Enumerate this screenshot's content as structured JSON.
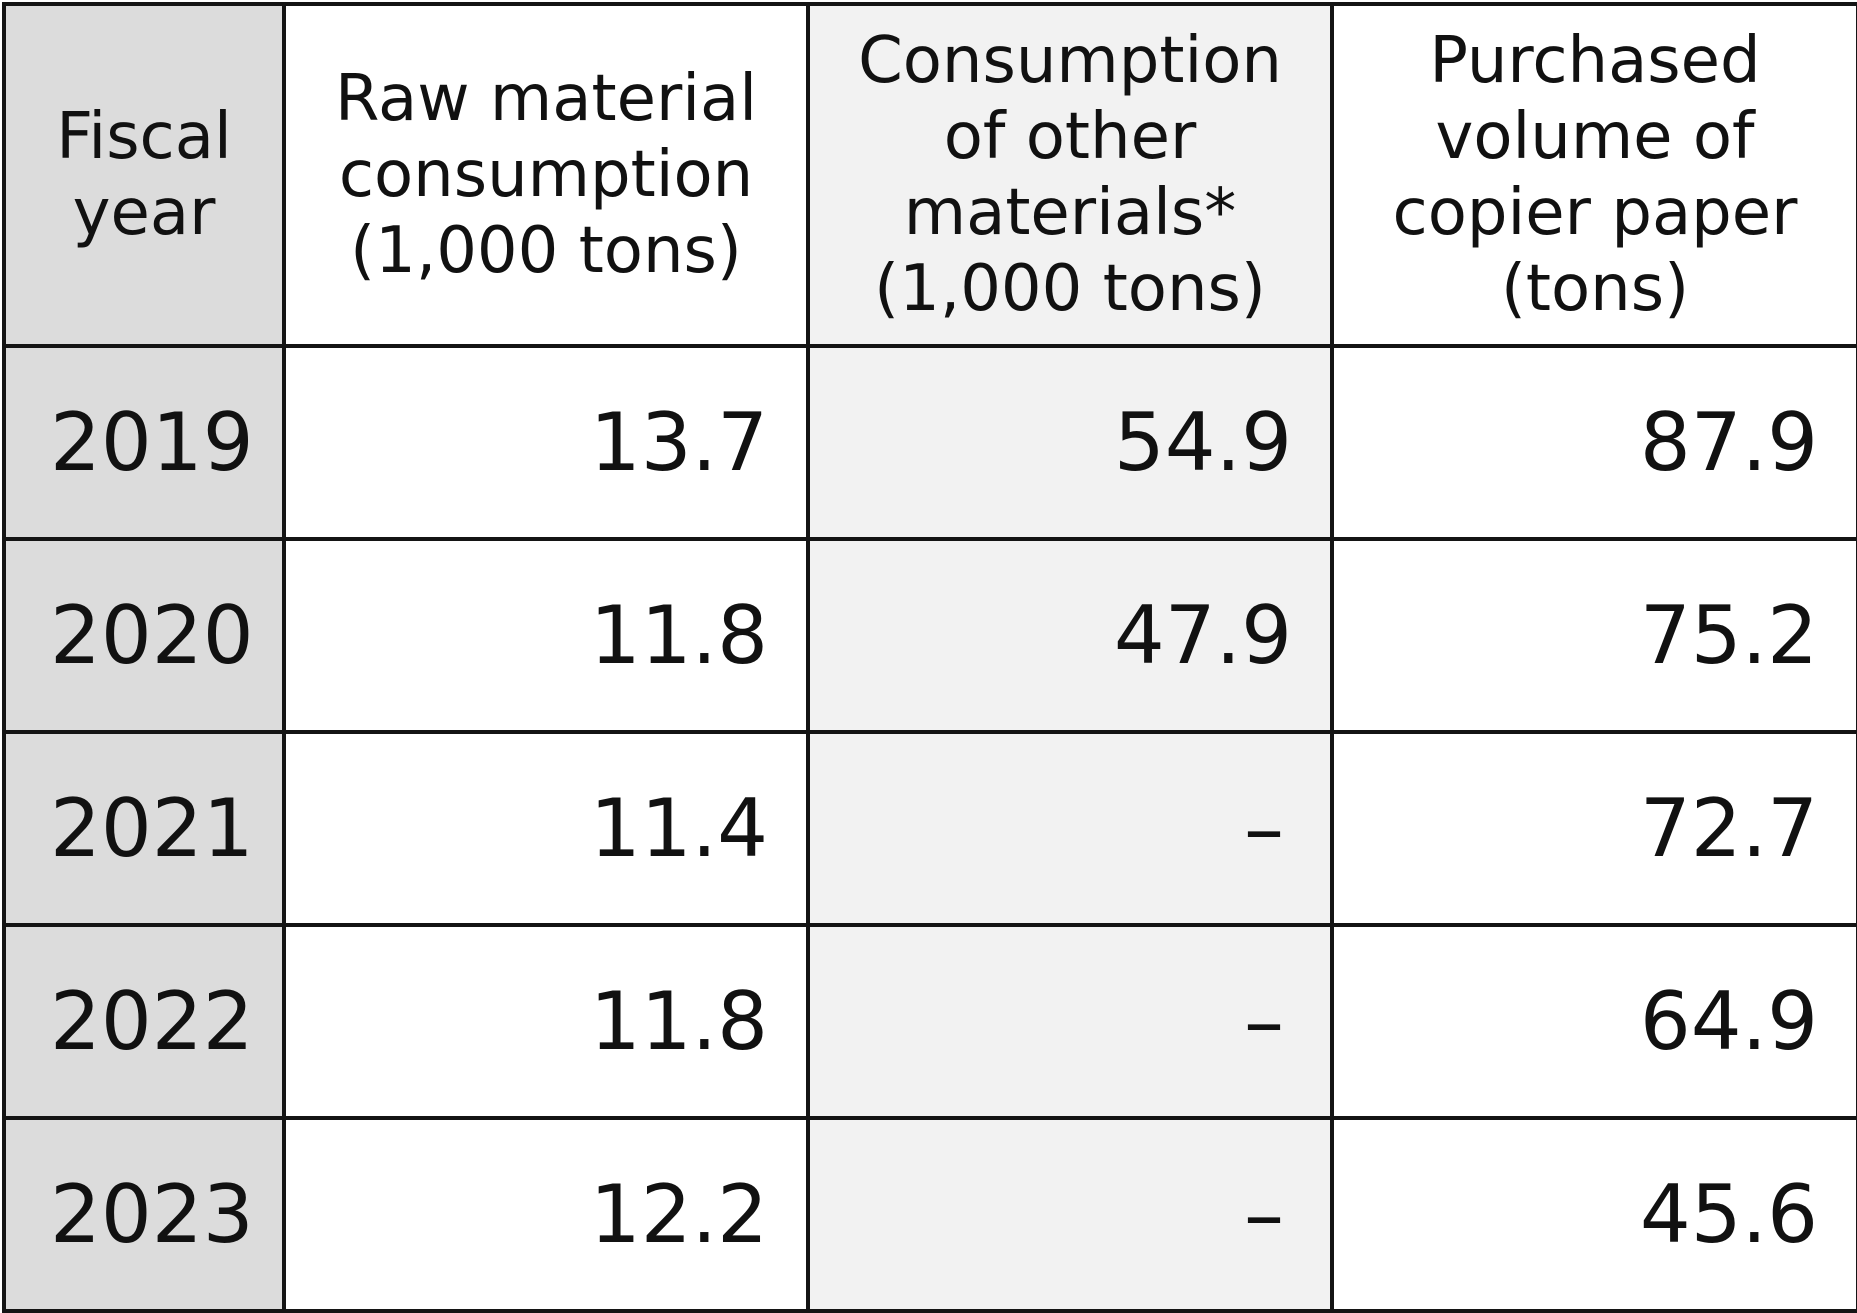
{
  "chart_data": {
    "type": "table",
    "columns": [
      {
        "lines": [
          "Fiscal",
          "year"
        ]
      },
      {
        "lines": [
          "Raw material",
          "consumption",
          "(1,000 tons)"
        ]
      },
      {
        "lines": [
          "Consumption",
          "of other",
          "materials*",
          "(1,000 tons)"
        ]
      },
      {
        "lines": [
          "Purchased",
          "volume of",
          "copier paper",
          "(tons)"
        ]
      }
    ],
    "rows": [
      [
        "2019",
        "13.7",
        "54.9",
        "87.9"
      ],
      [
        "2020",
        "11.8",
        "47.9",
        "75.2"
      ],
      [
        "2021",
        "11.4",
        "–",
        "72.7"
      ],
      [
        "2022",
        "11.8",
        "–",
        "64.9"
      ],
      [
        "2023",
        "12.2",
        "–",
        "45.6"
      ]
    ]
  },
  "colors": {
    "year_column_bg": "#dcdcdc",
    "alt_column_bg": "#f2f2f2",
    "border": "#141414"
  }
}
